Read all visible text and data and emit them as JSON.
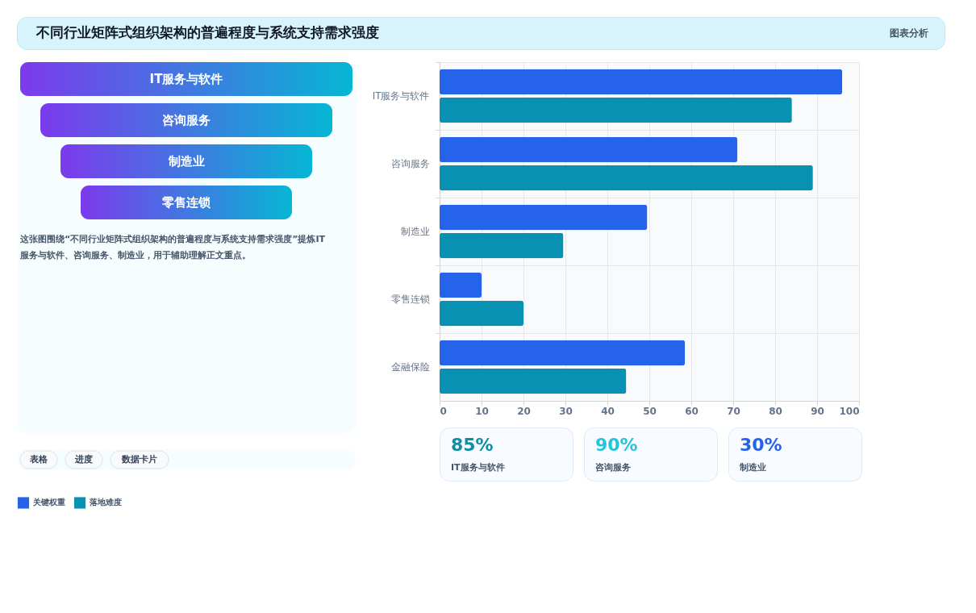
{
  "chart_data": [
    {
      "type": "other",
      "title": "不同行业矩阵式组织架构的普遍程度与系统支持需求强度",
      "annotations": [
        "图表分析"
      ]
    },
    {
      "type": "other",
      "categories": [
        "IT服务与软件",
        "咨询服务",
        "制造业",
        "零售连锁"
      ],
      "annotations": [
        "这张图围绕“不同行业矩阵式组织架构的普遍程度与系统支持需求强度”提炼IT服务与软件、咨询服务、制造业，用于辅助理解正文重点。"
      ]
    },
    {
      "type": "other",
      "annotations": [
        "表格",
        "进度",
        "数据卡片"
      ]
    },
    {
      "type": "bar",
      "orientation": "horizontal",
      "categories": [
        "IT服务与软件",
        "咨询服务",
        "制造业",
        "零售连锁",
        "金融保险"
      ],
      "series": [
        {
          "name": "关键权重",
          "color": "#2563eb",
          "values": [
            96,
            71,
            49.5,
            10,
            58.5
          ]
        },
        {
          "name": "落地难度",
          "color": "#0891b2",
          "values": [
            84,
            89,
            29.5,
            20,
            44.5
          ]
        }
      ],
      "xlim": [
        0,
        100
      ],
      "xticks": [
        0,
        10,
        20,
        30,
        40,
        50,
        60,
        70,
        80,
        90,
        100
      ],
      "grid": true,
      "legend": "bottom"
    },
    {
      "type": "other",
      "title": "85%",
      "subtitle": "IT服务与软件",
      "color": "#0e8fa6"
    },
    {
      "type": "other",
      "title": "90%",
      "subtitle": "咨询服务",
      "color": "#22c5dd"
    },
    {
      "type": "other",
      "title": "30%",
      "subtitle": "制造业",
      "color": "#2563eb"
    }
  ]
}
